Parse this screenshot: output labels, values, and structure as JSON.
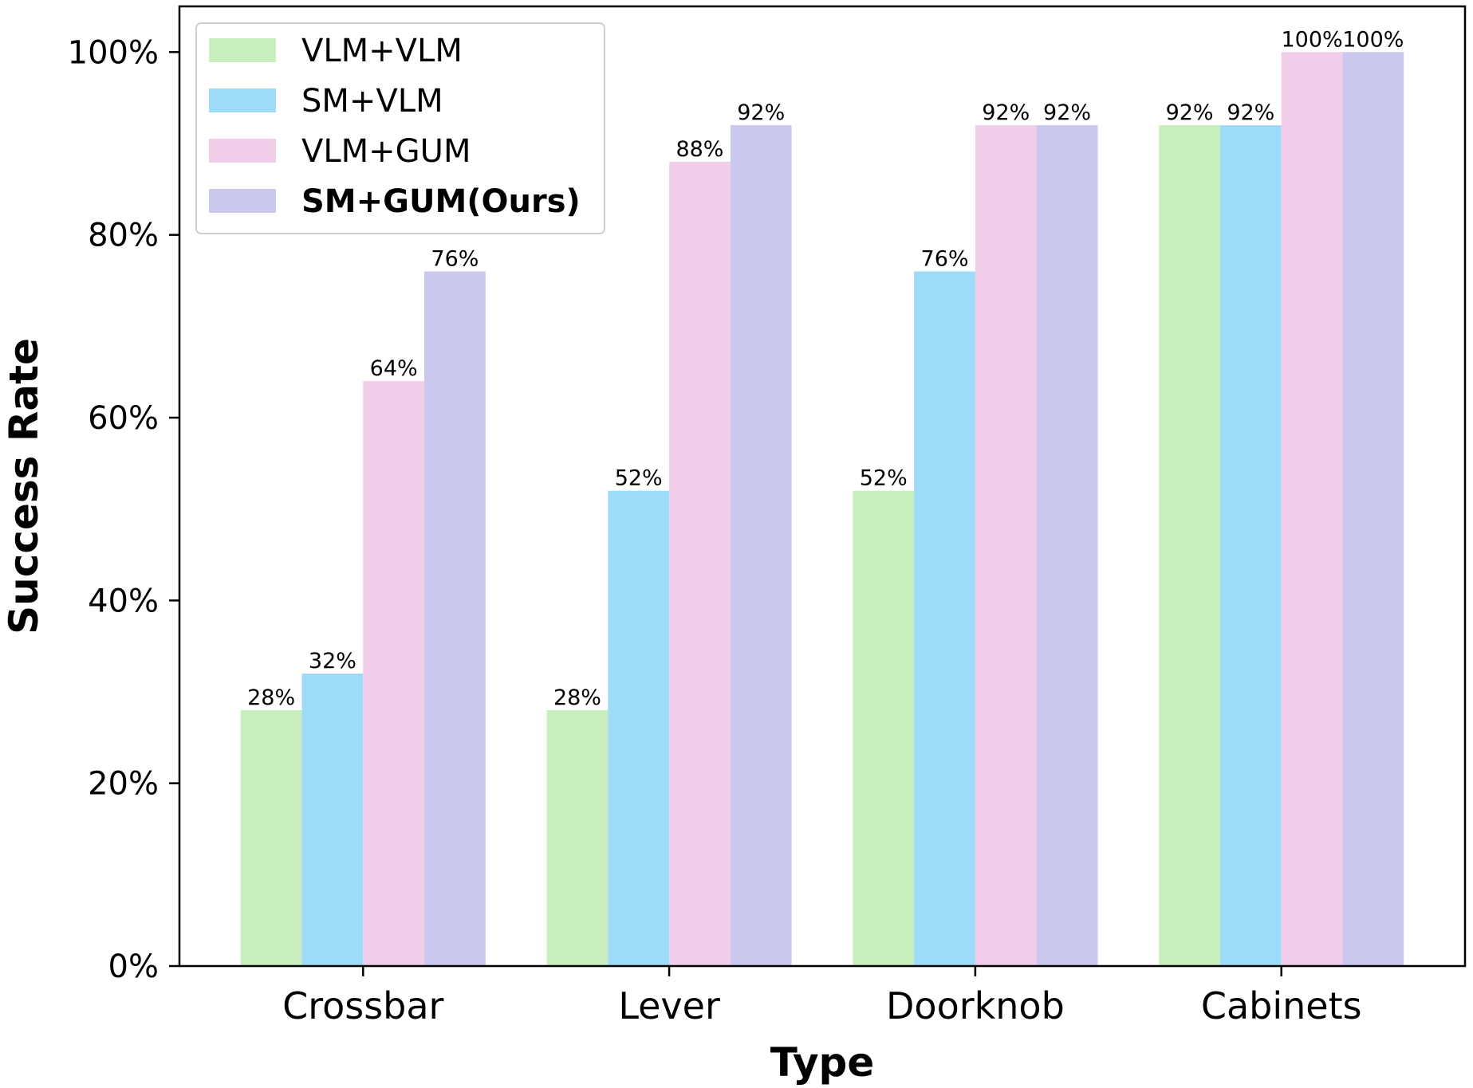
{
  "chart_data": {
    "type": "bar",
    "xlabel": "Type",
    "ylabel": "Success Rate",
    "categories": [
      "Crossbar",
      "Lever",
      "Doorknob",
      "Cabinets"
    ],
    "series": [
      {
        "name": "VLM+VLM",
        "color": "#c8eebe",
        "values": [
          28,
          28,
          52,
          92
        ],
        "labels": [
          "28%",
          "28%",
          "52%",
          "92%"
        ]
      },
      {
        "name": "SM+VLM",
        "color": "#9edbf9",
        "values": [
          32,
          52,
          76,
          92
        ],
        "labels": [
          "32%",
          "52%",
          "76%",
          "92%"
        ]
      },
      {
        "name": "VLM+GUM",
        "color": "#f0cde8",
        "values": [
          64,
          88,
          92,
          100
        ],
        "labels": [
          "64%",
          "88%",
          "92%",
          "100%"
        ]
      },
      {
        "name": "SM+GUM(Ours)",
        "color": "#cac8ee",
        "values": [
          76,
          92,
          92,
          100
        ],
        "labels": [
          "76%",
          "92%",
          "92%",
          "100%"
        ],
        "bold": true
      }
    ],
    "ylim": [
      0,
      105
    ],
    "yticks": [
      0,
      20,
      40,
      60,
      80,
      100
    ],
    "ytick_labels": [
      "0%",
      "20%",
      "40%",
      "60%",
      "80%",
      "100%"
    ],
    "grid": false,
    "legend_position": "top-left"
  }
}
